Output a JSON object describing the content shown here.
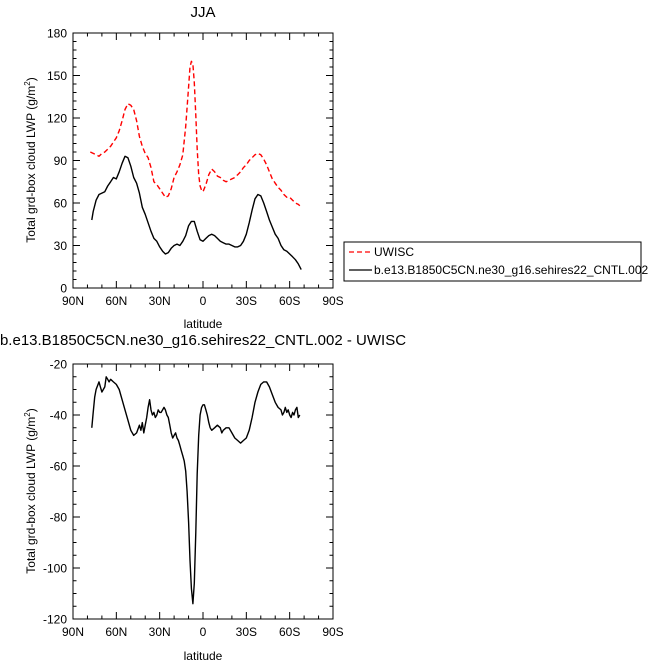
{
  "chart_data": [
    {
      "type": "line",
      "title": "JJA",
      "xlabel": "latitude",
      "ylabel": "Total grd-box cloud LWP (g/m²)",
      "ylabel_main": "Total grd-box cloud LWP (g/m",
      "ylabel_sup": "2",
      "ylabel_end": ")",
      "xlim": [
        90,
        -90
      ],
      "ylim": [
        0,
        180
      ],
      "xticks": [
        90,
        60,
        30,
        0,
        -30,
        -60,
        -90
      ],
      "xtick_labels": [
        "90N",
        "60N",
        "30N",
        "0",
        "30S",
        "60S",
        "90S"
      ],
      "yticks": [
        0,
        30,
        60,
        90,
        120,
        150,
        180
      ],
      "ytick_labels": [
        "0",
        "30",
        "60",
        "90",
        "120",
        "150",
        "180"
      ],
      "legend": "outside-right",
      "series": [
        {
          "name": "UWISC",
          "color": "#ff0000",
          "dash": "dashed",
          "points": [
            [
              78,
              96
            ],
            [
              76,
              95
            ],
            [
              74,
              94
            ],
            [
              72,
              93
            ],
            [
              70,
              95
            ],
            [
              68,
              96
            ],
            [
              66,
              98
            ],
            [
              64,
              100
            ],
            [
              62,
              103
            ],
            [
              60,
              106
            ],
            [
              58,
              111
            ],
            [
              56,
              118
            ],
            [
              54,
              126
            ],
            [
              52,
              130
            ],
            [
              50,
              129
            ],
            [
              48,
              126
            ],
            [
              46,
              118
            ],
            [
              44,
              107
            ],
            [
              42,
              100
            ],
            [
              40,
              95
            ],
            [
              38,
              92
            ],
            [
              36,
              85
            ],
            [
              34,
              75
            ],
            [
              32,
              73
            ],
            [
              30,
              70
            ],
            [
              28,
              67
            ],
            [
              26,
              64
            ],
            [
              24,
              65
            ],
            [
              22,
              70
            ],
            [
              20,
              78
            ],
            [
              18,
              82
            ],
            [
              16,
              87
            ],
            [
              14,
              94
            ],
            [
              12,
              114
            ],
            [
              10,
              142
            ],
            [
              9,
              156
            ],
            [
              8,
              160
            ],
            [
              7,
              158
            ],
            [
              6,
              145
            ],
            [
              5,
              122
            ],
            [
              4,
              98
            ],
            [
              3,
              80
            ],
            [
              2,
              72
            ],
            [
              1,
              69
            ],
            [
              0,
              68
            ],
            [
              -2,
              73
            ],
            [
              -4,
              80
            ],
            [
              -6,
              84
            ],
            [
              -8,
              82
            ],
            [
              -10,
              79
            ],
            [
              -12,
              78
            ],
            [
              -14,
              76
            ],
            [
              -16,
              75
            ],
            [
              -18,
              76
            ],
            [
              -20,
              77
            ],
            [
              -22,
              78
            ],
            [
              -24,
              80
            ],
            [
              -26,
              82
            ],
            [
              -28,
              85
            ],
            [
              -30,
              87
            ],
            [
              -32,
              90
            ],
            [
              -34,
              92
            ],
            [
              -36,
              94
            ],
            [
              -38,
              95
            ],
            [
              -40,
              94
            ],
            [
              -42,
              91
            ],
            [
              -44,
              87
            ],
            [
              -46,
              82
            ],
            [
              -48,
              77
            ],
            [
              -50,
              74
            ],
            [
              -52,
              71
            ],
            [
              -54,
              69
            ],
            [
              -56,
              66
            ],
            [
              -58,
              64
            ],
            [
              -60,
              64
            ],
            [
              -62,
              62
            ],
            [
              -64,
              60
            ],
            [
              -66,
              59
            ],
            [
              -67,
              58
            ]
          ]
        },
        {
          "name": "b.e13.B1850C5CN.ne30_g16.sehires22_CNTL.002",
          "color": "#000000",
          "dash": "solid",
          "points": [
            [
              77,
              48
            ],
            [
              76,
              54
            ],
            [
              74,
              62
            ],
            [
              72,
              66
            ],
            [
              70,
              67
            ],
            [
              68,
              68
            ],
            [
              66,
              72
            ],
            [
              64,
              75
            ],
            [
              62,
              78
            ],
            [
              60,
              77
            ],
            [
              58,
              82
            ],
            [
              56,
              88
            ],
            [
              54,
              93
            ],
            [
              52,
              92
            ],
            [
              50,
              86
            ],
            [
              48,
              78
            ],
            [
              46,
              74
            ],
            [
              44,
              67
            ],
            [
              42,
              57
            ],
            [
              40,
              52
            ],
            [
              38,
              46
            ],
            [
              36,
              40
            ],
            [
              34,
              35
            ],
            [
              32,
              33
            ],
            [
              30,
              29
            ],
            [
              28,
              26
            ],
            [
              26,
              24
            ],
            [
              24,
              25
            ],
            [
              22,
              28
            ],
            [
              20,
              30
            ],
            [
              18,
              31
            ],
            [
              16,
              30
            ],
            [
              14,
              33
            ],
            [
              12,
              37
            ],
            [
              10,
              44
            ],
            [
              8,
              47
            ],
            [
              6,
              47
            ],
            [
              4,
              40
            ],
            [
              2,
              34
            ],
            [
              0,
              33
            ],
            [
              -2,
              35
            ],
            [
              -4,
              37
            ],
            [
              -6,
              38
            ],
            [
              -8,
              37
            ],
            [
              -10,
              35
            ],
            [
              -12,
              33
            ],
            [
              -14,
              32
            ],
            [
              -16,
              31
            ],
            [
              -18,
              31
            ],
            [
              -20,
              30
            ],
            [
              -22,
              29
            ],
            [
              -24,
              29
            ],
            [
              -26,
              30
            ],
            [
              -28,
              33
            ],
            [
              -30,
              38
            ],
            [
              -32,
              46
            ],
            [
              -34,
              55
            ],
            [
              -36,
              63
            ],
            [
              -38,
              66
            ],
            [
              -40,
              65
            ],
            [
              -42,
              60
            ],
            [
              -44,
              54
            ],
            [
              -46,
              48
            ],
            [
              -48,
              43
            ],
            [
              -50,
              38
            ],
            [
              -52,
              35
            ],
            [
              -54,
              30
            ],
            [
              -56,
              27
            ],
            [
              -58,
              26
            ],
            [
              -60,
              24
            ],
            [
              -62,
              22
            ],
            [
              -64,
              20
            ],
            [
              -66,
              17
            ],
            [
              -68,
              13
            ]
          ]
        }
      ]
    },
    {
      "type": "line",
      "title": "b.e13.B1850C5CN.ne30_g16.sehires22_CNTL.002 - UWISC",
      "xlabel": "latitude",
      "ylabel": "Total grd-box cloud LWP (g/m²)",
      "ylabel_main": "Total grd-box cloud LWP (g/m",
      "ylabel_sup": "2",
      "ylabel_end": ")",
      "xlim": [
        90,
        -90
      ],
      "ylim": [
        -120,
        -20
      ],
      "xticks": [
        90,
        60,
        30,
        0,
        -30,
        -60,
        -90
      ],
      "xtick_labels": [
        "90N",
        "60N",
        "30N",
        "0",
        "30S",
        "60S",
        "90S"
      ],
      "yticks": [
        -120,
        -100,
        -80,
        -60,
        -40,
        -20
      ],
      "ytick_labels": [
        "-120",
        "-100",
        "-80",
        "-60",
        "-40",
        "-20"
      ],
      "series": [
        {
          "color": "#000000",
          "dash": "solid",
          "points": [
            [
              77,
              -45
            ],
            [
              76,
              -39
            ],
            [
              75,
              -33
            ],
            [
              74,
              -30
            ],
            [
              72,
              -27
            ],
            [
              71,
              -29
            ],
            [
              70,
              -31
            ],
            [
              69,
              -30
            ],
            [
              68,
              -29
            ],
            [
              67,
              -25
            ],
            [
              66,
              -26
            ],
            [
              65,
              -27
            ],
            [
              64,
              -26
            ],
            [
              62,
              -27
            ],
            [
              60,
              -28
            ],
            [
              58,
              -30
            ],
            [
              56,
              -34
            ],
            [
              54,
              -38
            ],
            [
              52,
              -42
            ],
            [
              50,
              -46
            ],
            [
              48,
              -48
            ],
            [
              46,
              -47
            ],
            [
              44,
              -44
            ],
            [
              43,
              -46
            ],
            [
              42,
              -43
            ],
            [
              41,
              -47
            ],
            [
              40,
              -44
            ],
            [
              39,
              -41
            ],
            [
              38,
              -37
            ],
            [
              37,
              -34
            ],
            [
              36,
              -38
            ],
            [
              35,
              -40
            ],
            [
              34,
              -39
            ],
            [
              33,
              -41
            ],
            [
              32,
              -40
            ],
            [
              31,
              -38
            ],
            [
              30,
              -39
            ],
            [
              29,
              -39
            ],
            [
              28,
              -38
            ],
            [
              27,
              -37
            ],
            [
              26,
              -38
            ],
            [
              25,
              -40
            ],
            [
              24,
              -41
            ],
            [
              23,
              -44
            ],
            [
              22,
              -47
            ],
            [
              21,
              -49
            ],
            [
              20,
              -48
            ],
            [
              19,
              -47
            ],
            [
              18,
              -49
            ],
            [
              17,
              -50
            ],
            [
              16,
              -52
            ],
            [
              15,
              -54
            ],
            [
              14,
              -56
            ],
            [
              13,
              -58
            ],
            [
              12,
              -62
            ],
            [
              11,
              -70
            ],
            [
              10,
              -82
            ],
            [
              9,
              -97
            ],
            [
              8,
              -108
            ],
            [
              7,
              -114
            ],
            [
              6,
              -106
            ],
            [
              5,
              -86
            ],
            [
              4,
              -63
            ],
            [
              3,
              -48
            ],
            [
              2,
              -40
            ],
            [
              1,
              -37
            ],
            [
              0,
              -36
            ],
            [
              -1,
              -36
            ],
            [
              -2,
              -38
            ],
            [
              -3,
              -40
            ],
            [
              -4,
              -43
            ],
            [
              -5,
              -45
            ],
            [
              -6,
              -46
            ],
            [
              -8,
              -45
            ],
            [
              -10,
              -44
            ],
            [
              -12,
              -45
            ],
            [
              -13,
              -47
            ],
            [
              -14,
              -46
            ],
            [
              -16,
              -45
            ],
            [
              -18,
              -45
            ],
            [
              -20,
              -47
            ],
            [
              -22,
              -49
            ],
            [
              -24,
              -50
            ],
            [
              -26,
              -51
            ],
            [
              -28,
              -50
            ],
            [
              -30,
              -49
            ],
            [
              -32,
              -46
            ],
            [
              -34,
              -41
            ],
            [
              -36,
              -35
            ],
            [
              -38,
              -31
            ],
            [
              -40,
              -28
            ],
            [
              -42,
              -27
            ],
            [
              -44,
              -27
            ],
            [
              -46,
              -29
            ],
            [
              -48,
              -32
            ],
            [
              -50,
              -35
            ],
            [
              -52,
              -37
            ],
            [
              -54,
              -38
            ],
            [
              -55,
              -40
            ],
            [
              -56,
              -39
            ],
            [
              -57,
              -37
            ],
            [
              -58,
              -39
            ],
            [
              -59,
              -38
            ],
            [
              -60,
              -40
            ],
            [
              -61,
              -41
            ],
            [
              -62,
              -39
            ],
            [
              -63,
              -40
            ],
            [
              -64,
              -38
            ],
            [
              -65,
              -37
            ],
            [
              -66,
              -41
            ],
            [
              -67,
              -40
            ]
          ]
        }
      ]
    }
  ]
}
